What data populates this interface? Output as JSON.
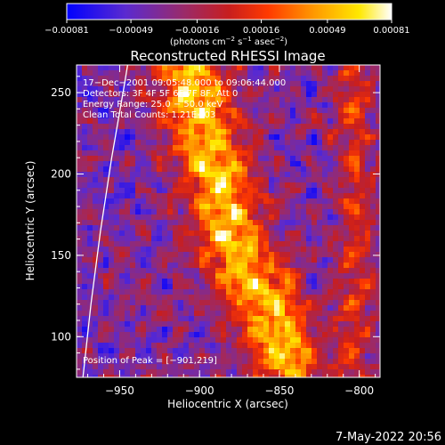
{
  "chart_data": {
    "type": "heatmap",
    "title": "Reconstructed RHESSI Image",
    "xlabel": "Heliocentric X (arcsec)",
    "ylabel": "Heliocentric Y (arcsec)",
    "xlim": [
      -977,
      -787
    ],
    "ylim": [
      75,
      267
    ],
    "x_ticks": [
      -950,
      -900,
      -850,
      -800
    ],
    "x_tick_labels": [
      "−950",
      "−900",
      "−850",
      "−800"
    ],
    "y_ticks": [
      100,
      150,
      200,
      250
    ],
    "y_tick_labels": [
      "100",
      "150",
      "200",
      "250"
    ],
    "colorbar": {
      "range": [
        -0.00081,
        0.00081
      ],
      "ticks": [
        -0.00081,
        -0.00049,
        -0.00016,
        0.00016,
        0.00049,
        0.00081
      ],
      "tick_labels": [
        "−0.00081",
        "−0.00049",
        "−0.00016",
        "0.00016",
        "0.00049",
        "0.00081"
      ],
      "units_prefix": "(photons cm",
      "units_exp1": "−2",
      "units_mid1": " s",
      "units_exp2": "−1",
      "units_mid2": " asec",
      "units_exp3": "−2",
      "units_suffix": ")"
    },
    "annotations": [
      "17−Dec−2001 09:05:48.000 to 09:06:44.000",
      "Detectors: 3F 4F 5F 6F 7F 8F, Att 0",
      "Energy Range: 25.0 − 50.0 keV",
      "Clean    Total Counts: 1.21E+03"
    ],
    "peak_label": "Position of Peak = [−901,219]",
    "peak": [
      -901,
      219
    ],
    "limb_curve": [
      [
        -973,
        75
      ],
      [
        -968,
        120
      ],
      [
        -962,
        165
      ],
      [
        -955,
        210
      ],
      [
        -947,
        255
      ],
      [
        -945,
        267
      ]
    ],
    "bright_ridge": [
      [
        -905,
        262
      ],
      [
        -900,
        235
      ],
      [
        -892,
        210
      ],
      [
        -885,
        185
      ],
      [
        -880,
        160
      ],
      [
        -870,
        140
      ],
      [
        -858,
        120
      ],
      [
        -850,
        100
      ],
      [
        -845,
        85
      ]
    ],
    "grid": false,
    "legend": "none"
  },
  "footer": {
    "date": "7-May-2022 20:56"
  },
  "colors": {
    "background": "#000000",
    "axes": "#ffffff"
  }
}
